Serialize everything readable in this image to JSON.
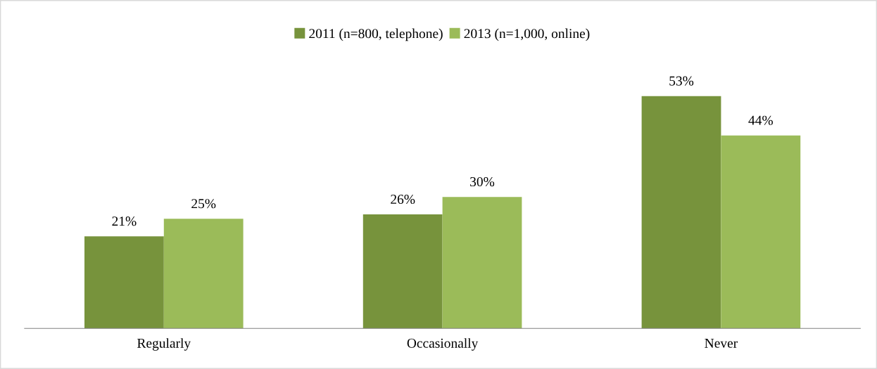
{
  "chart_data": {
    "type": "bar",
    "categories": [
      "Regularly",
      "Occasionally",
      "Never"
    ],
    "series": [
      {
        "name": "2011 (n=800, telephone)",
        "color": "#77933c",
        "values": [
          21,
          26,
          53
        ],
        "value_labels": [
          "21%",
          "26%",
          "53%"
        ]
      },
      {
        "name": "2013 (n=1,000, online)",
        "color": "#9bbb59",
        "values": [
          25,
          30,
          44
        ],
        "value_labels": [
          "25%",
          "30%",
          "44%"
        ]
      }
    ],
    "legend": "top",
    "grid": false
  }
}
